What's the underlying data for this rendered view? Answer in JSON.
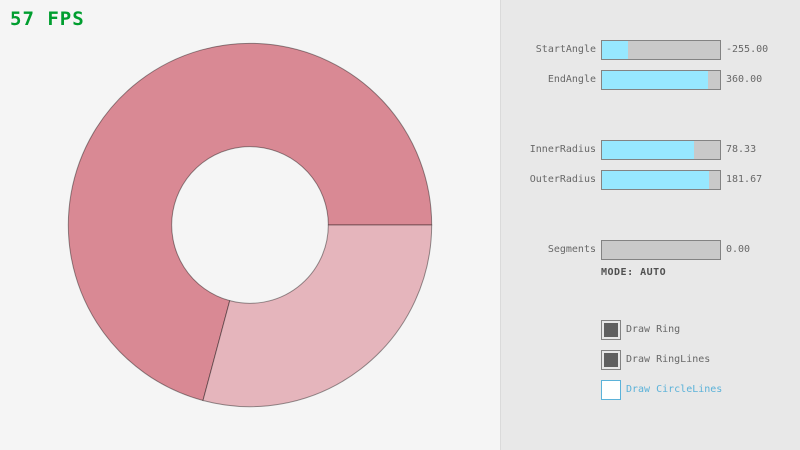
{
  "fps": {
    "text": "57 FPS"
  },
  "colors": {
    "bg": "#f5f5f5",
    "panel_bg": "#e8e8e8",
    "divider": "#dadada",
    "fps_green": "#009e2f",
    "text": "#686868",
    "mode_text": "#505050",
    "slider_border": "#838383",
    "slider_track": "#c9c9c9",
    "slider_fill": "#97e8ff",
    "check_mark": "#606060",
    "focus_blue": "#5bb2d9",
    "ring_outline": "rgba(0,0,0,0.4)"
  },
  "ring": {
    "start_angle": -255.0,
    "end_angle": 360.0,
    "inner_radius": 78.33,
    "outer_radius": 181.67,
    "segments": 0.0,
    "mode": "AUTO",
    "single_pass_color": "#e5b5bc",
    "double_pass_color": "#d98994"
  },
  "panel": {
    "sliders": [
      {
        "label": "StartAngle",
        "value": "-255.00",
        "fill_pct": 21.7
      },
      {
        "label": "EndAngle",
        "value": "360.00",
        "fill_pct": 90.0
      },
      {
        "label": "InnerRadius",
        "value": "78.33",
        "fill_pct": 78.3
      },
      {
        "label": "OuterRadius",
        "value": "181.67",
        "fill_pct": 90.8
      },
      {
        "label": "Segments",
        "value": "0.00",
        "fill_pct": 0.0
      }
    ],
    "mode_text": "MODE: AUTO",
    "checkboxes": [
      {
        "label": "Draw Ring",
        "checked": true,
        "focused": false
      },
      {
        "label": "Draw RingLines",
        "checked": true,
        "focused": false
      },
      {
        "label": "Draw CircleLines",
        "checked": false,
        "focused": true
      }
    ]
  }
}
